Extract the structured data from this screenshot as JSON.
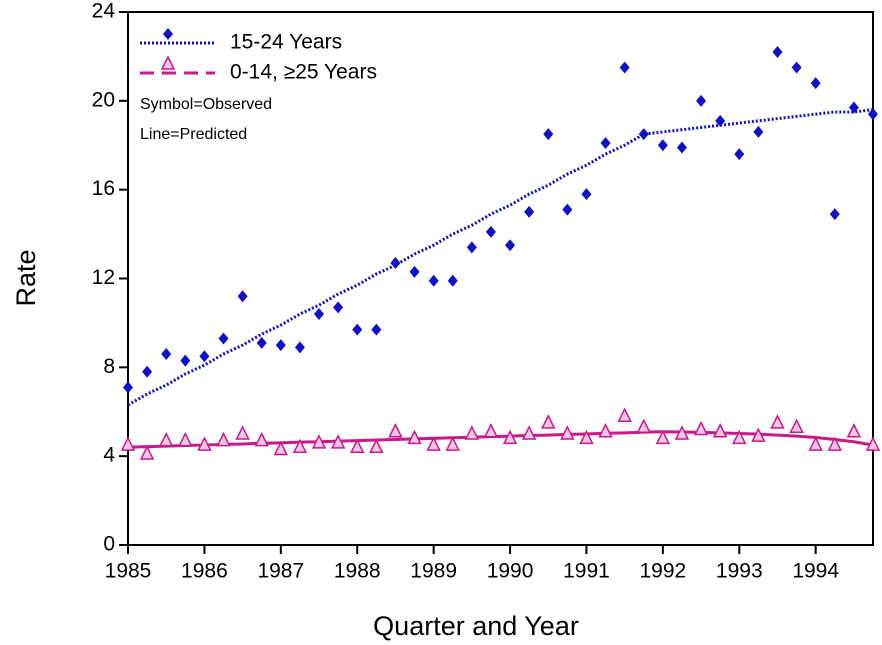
{
  "chart_data": {
    "type": "scatter-line",
    "x_label": "Quarter and Year",
    "y_label": "Rate",
    "notes": [
      "Symbol=Observed",
      "Line=Predicted"
    ],
    "x": [
      1985,
      1985.25,
      1985.5,
      1985.75,
      1986,
      1986.25,
      1986.5,
      1986.75,
      1987,
      1987.25,
      1987.5,
      1987.75,
      1988,
      1988.25,
      1988.5,
      1988.75,
      1989,
      1989.25,
      1989.5,
      1989.75,
      1990,
      1990.25,
      1990.5,
      1990.75,
      1991,
      1991.25,
      1991.5,
      1991.75,
      1992,
      1992.25,
      1992.5,
      1992.75,
      1993,
      1993.25,
      1993.5,
      1993.75,
      1994,
      1994.25,
      1994.5,
      1994.75
    ],
    "series": [
      {
        "name": "15-24 Years",
        "color": "#1010c8",
        "marker": "diamond",
        "line": "dotted",
        "values": [
          7.1,
          7.8,
          8.6,
          8.3,
          8.5,
          9.3,
          11.2,
          9.1,
          9.0,
          8.9,
          10.4,
          10.7,
          9.7,
          9.7,
          12.7,
          12.3,
          11.9,
          11.9,
          13.4,
          14.1,
          13.5,
          15.0,
          18.5,
          15.1,
          15.8,
          18.1,
          21.5,
          18.5,
          18.0,
          17.9,
          20.0,
          19.1,
          17.6,
          18.6,
          22.2,
          21.5,
          20.8,
          14.9,
          19.7,
          19.4
        ],
        "predicted": [
          6.3,
          6.8,
          7.2,
          7.7,
          8.1,
          8.6,
          9.0,
          9.5,
          9.9,
          10.4,
          10.8,
          11.3,
          11.7,
          12.2,
          12.6,
          13.1,
          13.5,
          14.0,
          14.4,
          14.9,
          15.3,
          15.8,
          16.2,
          16.7,
          17.1,
          17.6,
          18.0,
          18.5,
          18.6,
          18.7,
          18.8,
          18.9,
          19.0,
          19.1,
          19.2,
          19.3,
          19.4,
          19.5,
          19.5,
          19.6
        ]
      },
      {
        "name": "0-14, ≥25 Years",
        "color": "#c8188c",
        "marker": "triangle",
        "line": "dashed",
        "values": [
          4.5,
          4.1,
          4.7,
          4.7,
          4.5,
          4.7,
          5.0,
          4.7,
          4.3,
          4.4,
          4.6,
          4.6,
          4.4,
          4.4,
          5.1,
          4.8,
          4.5,
          4.5,
          5.0,
          5.1,
          4.8,
          5.0,
          5.5,
          5.0,
          4.8,
          5.1,
          5.8,
          5.3,
          4.8,
          5.0,
          5.2,
          5.1,
          4.8,
          4.9,
          5.5,
          5.3,
          4.5,
          4.5,
          5.1,
          4.5
        ],
        "predicted": [
          4.4,
          4.43,
          4.45,
          4.48,
          4.5,
          4.53,
          4.55,
          4.58,
          4.6,
          4.63,
          4.65,
          4.68,
          4.7,
          4.73,
          4.75,
          4.78,
          4.8,
          4.83,
          4.85,
          4.88,
          4.9,
          4.93,
          4.95,
          4.98,
          5.0,
          5.03,
          5.05,
          5.08,
          5.1,
          5.09,
          5.07,
          5.05,
          5.02,
          4.99,
          4.95,
          4.9,
          4.84,
          4.75,
          4.65,
          4.5
        ]
      }
    ],
    "xlim": [
      1985,
      1994.75
    ],
    "xticks": [
      1985,
      1986,
      1987,
      1988,
      1989,
      1990,
      1991,
      1992,
      1993,
      1994
    ],
    "ylim": [
      0,
      24
    ],
    "yticks": [
      0,
      4,
      8,
      12,
      16,
      20,
      24
    ],
    "grid": false
  }
}
